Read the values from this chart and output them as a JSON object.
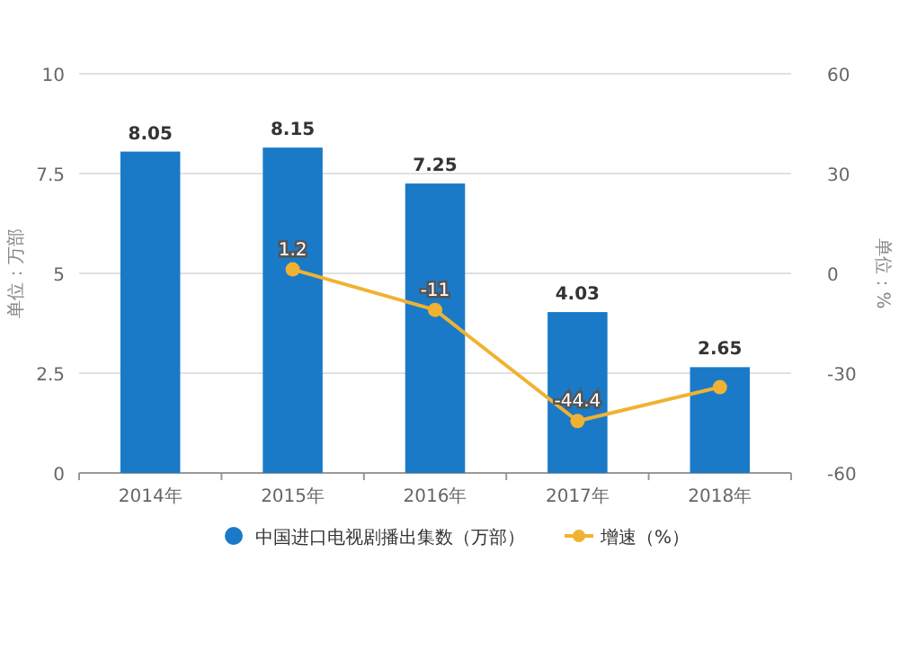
{
  "chart_data": {
    "type": "bar",
    "categories": [
      "2014年",
      "2015年",
      "2016年",
      "2017年",
      "2018年"
    ],
    "series": [
      {
        "name": "中国进口电视剧播出集数（万部）",
        "color": "#1a7ac8",
        "values": [
          8.05,
          8.15,
          7.25,
          4.03,
          2.65
        ],
        "value_labels": [
          "8.05",
          "8.15",
          "7.25",
          "4.03",
          "2.65"
        ]
      },
      {
        "name": "增速（%）",
        "type": "line",
        "axis": "y2",
        "color": "#f0b232",
        "values": [
          null,
          1.2,
          -11,
          -44.4,
          -34.2
        ],
        "value_labels": [
          null,
          "1.2",
          "-11",
          "-44.4",
          null
        ]
      }
    ],
    "ylabel": "单位：万部",
    "y2label": "单位：%",
    "ylim": [
      0,
      10
    ],
    "yticks": [
      0,
      2.5,
      5,
      7.5,
      10
    ],
    "y2lim": [
      -60,
      60
    ],
    "y2ticks": [
      -60,
      -30,
      0,
      30,
      60
    ],
    "grid": "y",
    "legend": "bottom",
    "marker": "circle"
  }
}
